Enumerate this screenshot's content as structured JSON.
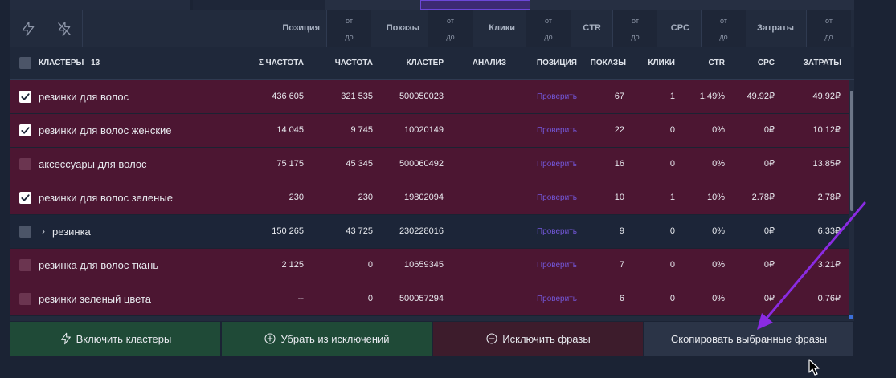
{
  "filters": [
    {
      "label": "Позиция",
      "from": "от",
      "to": "до"
    },
    {
      "label": "Показы",
      "from": "от",
      "to": "до"
    },
    {
      "label": "Клики",
      "from": "от",
      "to": "до"
    },
    {
      "label": "CTR",
      "from": "от",
      "to": "до"
    },
    {
      "label": "CPC",
      "from": "от",
      "to": "до"
    },
    {
      "label": "Затраты",
      "from": "от",
      "to": "до"
    }
  ],
  "header": {
    "clusters_label": "КЛАСТЕРЫ",
    "clusters_count": "13",
    "sum_freq": "Σ ЧАСТОТА",
    "freq": "ЧАСТОТА",
    "cluster": "КЛАСТЕР",
    "analysis": "АНАЛИЗ",
    "position": "ПОЗИЦИЯ",
    "shows": "ПОКАЗЫ",
    "clicks": "КЛИКИ",
    "ctr": "CTR",
    "cpc": "CPC",
    "costs": "ЗАТРАТЫ"
  },
  "rows": [
    {
      "name": "резинки для волос",
      "checked": true,
      "style": "sel",
      "expandable": false,
      "sum_freq": "436 605",
      "freq": "321 535",
      "cluster": "500050023",
      "position": "Проверить",
      "shows": "67",
      "clicks": "1",
      "ctr": "1.49%",
      "cpc": "49.92₽",
      "costs": "49.92₽"
    },
    {
      "name": "резинки для волос женские",
      "checked": true,
      "style": "sel",
      "expandable": false,
      "sum_freq": "14 045",
      "freq": "9 745",
      "cluster": "10020149",
      "position": "Проверить",
      "shows": "22",
      "clicks": "0",
      "ctr": "0%",
      "cpc": "0₽",
      "costs": "10.12₽"
    },
    {
      "name": "аксессуары для волос",
      "checked": false,
      "style": "sel",
      "expandable": false,
      "sum_freq": "75 175",
      "freq": "45 345",
      "cluster": "500060492",
      "position": "Проверить",
      "shows": "16",
      "clicks": "0",
      "ctr": "0%",
      "cpc": "0₽",
      "costs": "13.85₽"
    },
    {
      "name": "резинки для волос зеленые",
      "checked": true,
      "style": "sel",
      "expandable": false,
      "sum_freq": "230",
      "freq": "230",
      "cluster": "19802094",
      "position": "Проверить",
      "shows": "10",
      "clicks": "1",
      "ctr": "10%",
      "cpc": "2.78₽",
      "costs": "2.78₽"
    },
    {
      "name": "резинка",
      "checked": false,
      "style": "plain",
      "expandable": true,
      "sum_freq": "150 265",
      "freq": "43 725",
      "cluster": "230228016",
      "position": "Проверить",
      "shows": "9",
      "clicks": "0",
      "ctr": "0%",
      "cpc": "0₽",
      "costs": "6.33₽"
    },
    {
      "name": "резинка для волос ткань",
      "checked": false,
      "style": "sel",
      "expandable": false,
      "sum_freq": "2 125",
      "freq": "0",
      "cluster": "10659345",
      "position": "Проверить",
      "shows": "7",
      "clicks": "0",
      "ctr": "0%",
      "cpc": "0₽",
      "costs": "3.21₽"
    },
    {
      "name": "резинки зеленый цвета",
      "checked": false,
      "style": "sel",
      "expandable": false,
      "sum_freq": "--",
      "freq": "0",
      "cluster": "500057294",
      "position": "Проверить",
      "shows": "6",
      "clicks": "0",
      "ctr": "0%",
      "cpc": "0₽",
      "costs": "0.76₽"
    }
  ],
  "actions": {
    "enable_clusters": "Включить кластеры",
    "remove_exclusions": "Убрать из исключений",
    "exclude_phrases": "Исключить фразы",
    "copy_selected": "Скопировать выбранные фразы"
  },
  "icons": {
    "bolt": "bolt-icon",
    "bolt_off": "bolt-off-icon",
    "plus_circle": "plus-circle-icon",
    "minus_circle": "minus-circle-icon",
    "check": "check-icon",
    "chevron": "chevron-right-icon",
    "question": "question-icon"
  },
  "colors": {
    "selected_row": "#4c1632",
    "link": "#7357d9",
    "annotation_arrow": "#8a2be2"
  }
}
